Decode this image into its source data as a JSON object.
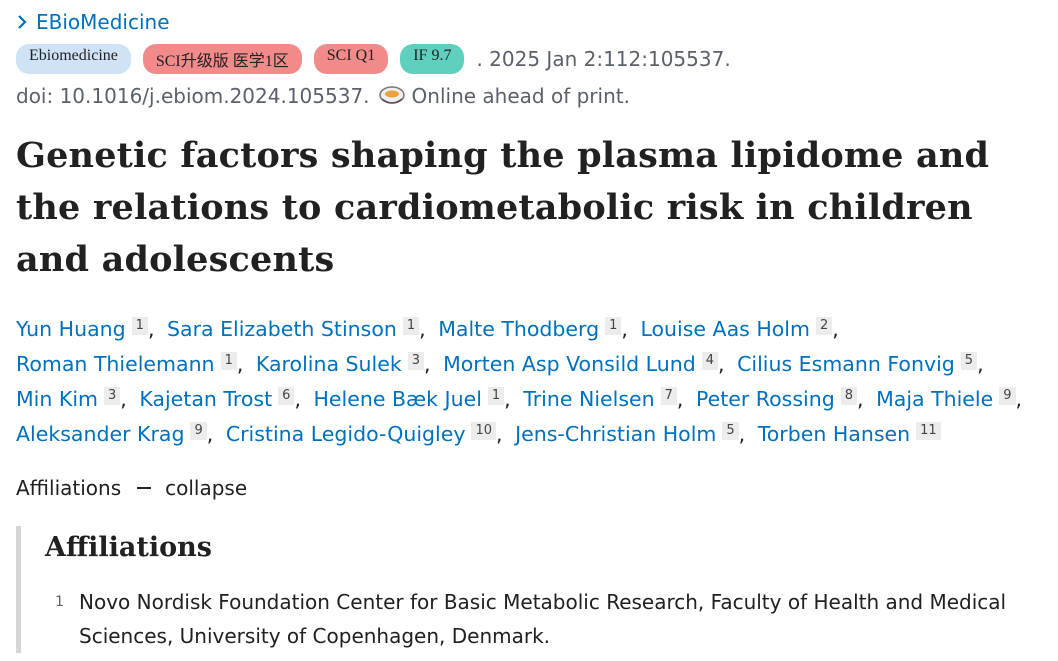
{
  "journal": "EBioMedicine",
  "badges": [
    "Ebiomedicine",
    "SCI升级版 医学1区",
    "SCI Q1",
    "IF 9.7"
  ],
  "citation": ". 2025 Jan 2:112:105537.",
  "doi": "doi: 10.1016/j.ebiom.2024.105537.",
  "publication_status": "Online ahead of print.",
  "title": "Genetic factors shaping the plasma lipidome and the relations to cardiometabolic risk in children and adolescents",
  "author_separator": ",",
  "authors": [
    {
      "name": "Yun Huang",
      "affiliation": "1"
    },
    {
      "name": "Sara Elizabeth Stinson",
      "affiliation": "1"
    },
    {
      "name": "Malte Thodberg",
      "affiliation": "1"
    },
    {
      "name": "Louise Aas Holm",
      "affiliation": "2"
    },
    {
      "name": "Roman Thielemann",
      "affiliation": "1"
    },
    {
      "name": "Karolina Sulek",
      "affiliation": "3"
    },
    {
      "name": "Morten Asp Vonsild Lund",
      "affiliation": "4"
    },
    {
      "name": "Cilius Esmann Fonvig",
      "affiliation": "5"
    },
    {
      "name": "Min Kim",
      "affiliation": "3"
    },
    {
      "name": "Kajetan Trost",
      "affiliation": "6"
    },
    {
      "name": "Helene Bæk Juel",
      "affiliation": "1"
    },
    {
      "name": "Trine Nielsen",
      "affiliation": "7"
    },
    {
      "name": "Peter Rossing",
      "affiliation": "8"
    },
    {
      "name": "Maja Thiele",
      "affiliation": "9"
    },
    {
      "name": "Aleksander Krag",
      "affiliation": "9"
    },
    {
      "name": "Cristina Legido-Quigley",
      "affiliation": "10"
    },
    {
      "name": "Jens-Christian Holm",
      "affiliation": "5"
    },
    {
      "name": "Torben Hansen",
      "affiliation": "11"
    }
  ],
  "affiliations_toggle": {
    "label": "Affiliations",
    "action": "collapse"
  },
  "affiliations": {
    "heading": "Affiliations",
    "items": [
      {
        "number": "1",
        "text": "Novo Nordisk Foundation Center for Basic Metabolic Research, Faculty of Health and Medical Sciences, University of Copenhagen, Denmark."
      }
    ]
  }
}
